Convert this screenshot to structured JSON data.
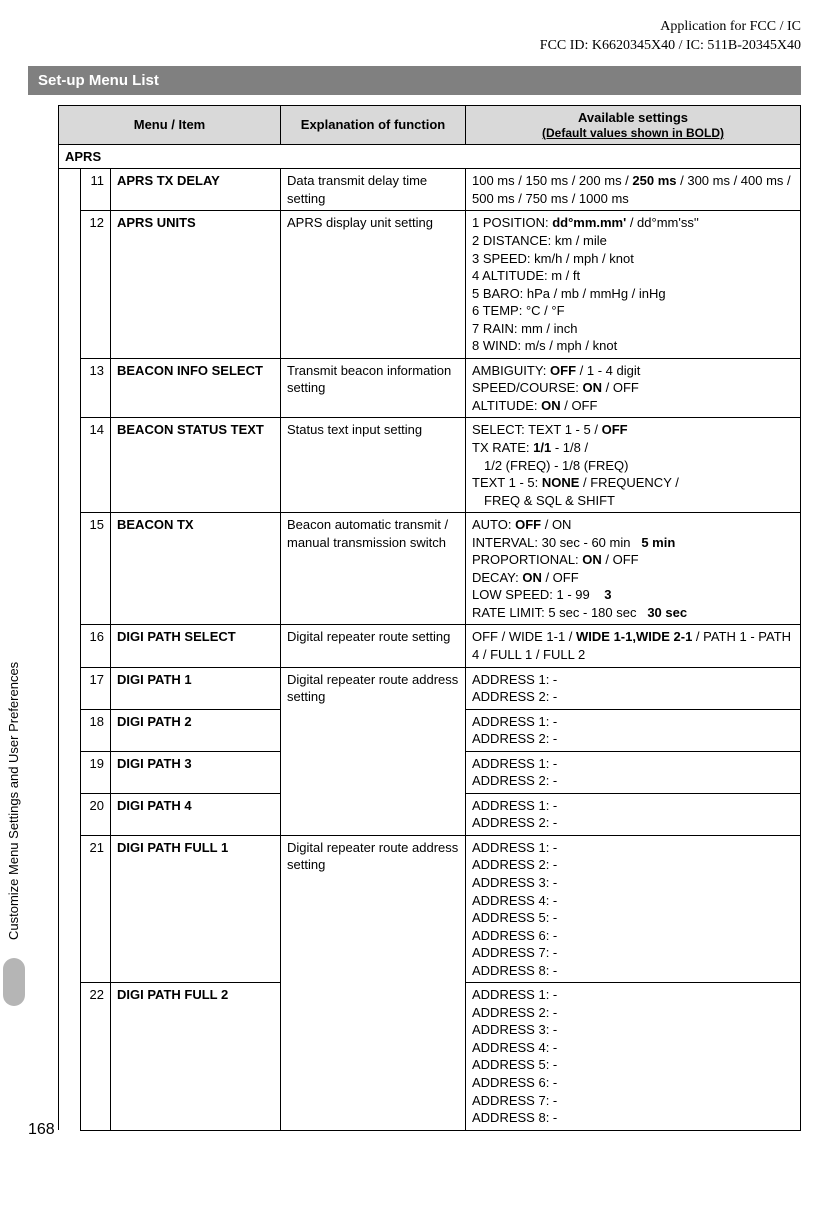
{
  "header": {
    "line1": "Application for FCC / IC",
    "line2": "FCC ID: K6620345X40 / IC: 511B-20345X40"
  },
  "title_bar": "Set-up Menu List",
  "side_tab": "Customize Menu Settings and User Preferences",
  "page_number": "168",
  "columns": {
    "menu_item": "Menu / Item",
    "explanation": "Explanation of function",
    "available": "Available settings",
    "available_sub": "(Default values shown in BOLD)"
  },
  "section": "APRS",
  "rows": [
    {
      "num": "11",
      "item": "APRS TX DELAY",
      "exp": "Data transmit delay time setting",
      "set_html": "100 ms / 150 ms / 200 ms / <strong>250 ms</strong> / 300 ms / 400 ms / 500 ms / 750 ms / 1000 ms"
    },
    {
      "num": "12",
      "item": "APRS UNITS",
      "exp": "APRS display unit setting",
      "set_html": "1 POSITION: <strong>dd°mm.mm'</strong> / dd°mm'ss''<br>2 DISTANCE: km / mile<br>3 SPEED: km/h / mph / knot<br>4 ALTITUDE: m / ft<br>5 BARO: hPa / mb / mmHg / inHg<br>6 TEMP: °C / °F<br>7 RAIN: mm / inch<br>8 WIND: m/s / mph / knot"
    },
    {
      "num": "13",
      "item": "BEACON INFO SELECT",
      "exp": "Transmit beacon information setting",
      "set_html": "AMBIGUITY: <strong>OFF</strong> / 1 - 4 digit<br>SPEED/COURSE: <strong>ON</strong> / OFF<br>ALTITUDE: <strong>ON</strong> / OFF"
    },
    {
      "num": "14",
      "item": "BEACON STATUS TEXT",
      "exp": "Status text input setting",
      "set_html": "SELECT: TEXT 1 - 5 / <strong>OFF</strong><br>TX RATE: <strong>1/1</strong> - 1/8 /<br><span class=\"indent\">1/2 (FREQ) - 1/8 (FREQ)</span>TEXT 1 - 5: <strong>NONE</strong> / FREQUENCY /<br><span class=\"indent\">FREQ &amp; SQL &amp; SHIFT</span>"
    },
    {
      "num": "15",
      "item": "BEACON TX",
      "exp": "Beacon automatic transmit / manual transmission switch",
      "set_html": "AUTO: <strong>OFF</strong> / ON<br>INTERVAL: 30 sec - 60 min&nbsp;&nbsp;&nbsp;<strong>5 min</strong><br>PROPORTIONAL: <strong>ON</strong> / OFF<br>DECAY: <strong>ON</strong> / OFF<br>LOW SPEED: 1 - 99&nbsp;&nbsp;&nbsp;&nbsp;<strong>3</strong><br>RATE LIMIT: 5 sec - 180 sec&nbsp;&nbsp;&nbsp;<strong>30 sec</strong>"
    },
    {
      "num": "16",
      "item": "DIGI PATH SELECT",
      "exp": "Digital repeater route setting",
      "set_html": "OFF / WIDE 1-1 / <strong>WIDE 1-1,WIDE 2-1</strong> / PATH 1 - PATH 4 / FULL 1 / FULL 2"
    },
    {
      "num": "17",
      "item": "DIGI PATH 1",
      "exp": "Digital repeater route address setting",
      "exp_rowspan": 4,
      "set_html": "ADDRESS 1: -<br>ADDRESS 2: -"
    },
    {
      "num": "18",
      "item": "DIGI PATH 2",
      "set_html": "ADDRESS 1: -<br>ADDRESS 2: -"
    },
    {
      "num": "19",
      "item": "DIGI PATH 3",
      "set_html": "ADDRESS 1: -<br>ADDRESS 2: -"
    },
    {
      "num": "20",
      "item": "DIGI PATH 4",
      "set_html": "ADDRESS 1: -<br>ADDRESS 2: -"
    },
    {
      "num": "21",
      "item": "DIGI PATH FULL 1",
      "exp": "Digital repeater route address setting",
      "exp_rowspan": 2,
      "set_html": "ADDRESS 1: -<br>ADDRESS 2: -<br>ADDRESS 3: -<br>ADDRESS 4: -<br>ADDRESS 5: -<br>ADDRESS 6: -<br>ADDRESS 7: -<br>ADDRESS 8: -"
    },
    {
      "num": "22",
      "item": "DIGI PATH FULL 2",
      "set_html": "ADDRESS 1: -<br>ADDRESS 2: -<br>ADDRESS 3: -<br>ADDRESS 4: -<br>ADDRESS 5: -<br>ADDRESS 6: -<br>ADDRESS 7: -<br>ADDRESS 8: -"
    }
  ],
  "colors": {
    "title_bg": "#808080",
    "header_bg": "#d9d9d9",
    "border": "#000000",
    "pill": "#b5b5b5"
  }
}
